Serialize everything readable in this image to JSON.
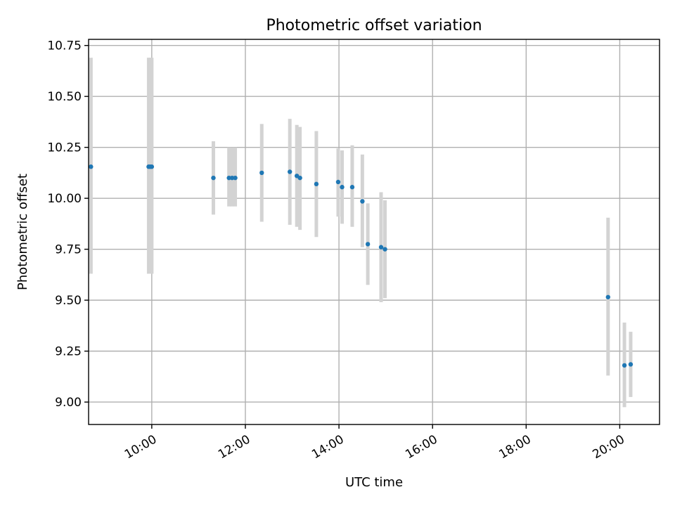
{
  "chart_data": {
    "type": "scatter",
    "title": "Photometric offset variation",
    "xlabel": "UTC time",
    "ylabel": "Photometric offset",
    "x_axis": {
      "range": [
        "08:39",
        "20:51"
      ],
      "ticks": [
        "10:00",
        "12:00",
        "14:00",
        "16:00",
        "18:00",
        "20:00"
      ]
    },
    "y_axis": {
      "range": [
        8.89,
        10.78
      ],
      "ticks": [
        "9.00",
        "9.25",
        "9.50",
        "9.75",
        "10.00",
        "10.25",
        "10.50",
        "10.75"
      ]
    },
    "grid": true,
    "points": [
      {
        "x": "08:42",
        "y": 10.155,
        "ylo": 9.63,
        "yhi": 10.69
      },
      {
        "x": "09:56",
        "y": 10.155,
        "ylo": 9.63,
        "yhi": 10.69
      },
      {
        "x": "09:58",
        "y": 10.155,
        "ylo": 9.63,
        "yhi": 10.69
      },
      {
        "x": "10:00",
        "y": 10.155,
        "ylo": 9.63,
        "yhi": 10.69
      },
      {
        "x": "11:19",
        "y": 10.1,
        "ylo": 9.92,
        "yhi": 10.28
      },
      {
        "x": "11:39",
        "y": 10.1,
        "ylo": 9.96,
        "yhi": 10.25
      },
      {
        "x": "11:43",
        "y": 10.1,
        "ylo": 9.96,
        "yhi": 10.25
      },
      {
        "x": "11:47",
        "y": 10.1,
        "ylo": 9.96,
        "yhi": 10.25
      },
      {
        "x": "12:21",
        "y": 10.125,
        "ylo": 9.885,
        "yhi": 10.365
      },
      {
        "x": "12:57",
        "y": 10.13,
        "ylo": 9.87,
        "yhi": 10.39
      },
      {
        "x": "13:06",
        "y": 10.11,
        "ylo": 9.86,
        "yhi": 10.36
      },
      {
        "x": "13:10",
        "y": 10.1,
        "ylo": 9.845,
        "yhi": 10.35
      },
      {
        "x": "13:31",
        "y": 10.07,
        "ylo": 9.81,
        "yhi": 10.33
      },
      {
        "x": "13:59",
        "y": 10.08,
        "ylo": 9.91,
        "yhi": 10.245
      },
      {
        "x": "14:04",
        "y": 10.055,
        "ylo": 9.875,
        "yhi": 10.235
      },
      {
        "x": "14:17",
        "y": 10.055,
        "ylo": 9.86,
        "yhi": 10.26
      },
      {
        "x": "14:30",
        "y": 9.985,
        "ylo": 9.76,
        "yhi": 10.215
      },
      {
        "x": "14:37",
        "y": 9.775,
        "ylo": 9.575,
        "yhi": 9.975
      },
      {
        "x": "14:54",
        "y": 9.76,
        "ylo": 9.49,
        "yhi": 10.03
      },
      {
        "x": "14:59",
        "y": 9.75,
        "ylo": 9.51,
        "yhi": 9.99
      },
      {
        "x": "19:45",
        "y": 9.515,
        "ylo": 9.13,
        "yhi": 9.905
      },
      {
        "x": "20:06",
        "y": 9.18,
        "ylo": 8.975,
        "yhi": 9.39
      },
      {
        "x": "20:14",
        "y": 9.185,
        "ylo": 9.025,
        "yhi": 9.345
      }
    ]
  }
}
